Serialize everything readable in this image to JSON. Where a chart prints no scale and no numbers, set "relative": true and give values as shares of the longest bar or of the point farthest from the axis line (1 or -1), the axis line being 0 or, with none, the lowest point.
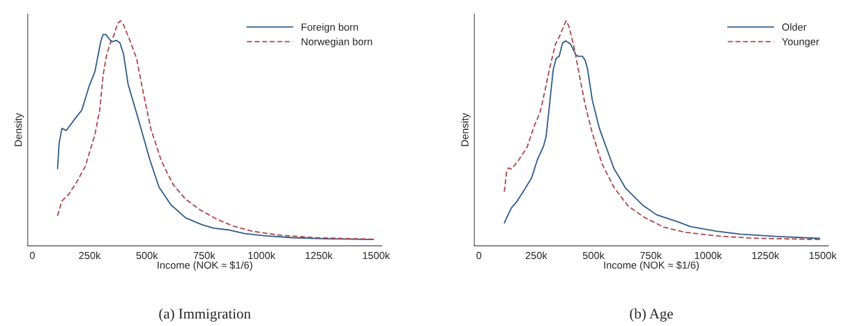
{
  "chart_data": [
    {
      "type": "line",
      "relative": true,
      "ylabel": "Density",
      "xlabel": "Income (NOK ≈ $1/6)",
      "xlim": [
        -20,
        1525
      ],
      "xticks": [
        0,
        {
          "value": 250,
          "label": "250k"
        },
        {
          "value": 500,
          "label": "500k"
        },
        {
          "value": 750,
          "label": "750k"
        },
        {
          "value": 1000,
          "label": "1000k"
        },
        {
          "value": 1250,
          "label": "1250k"
        },
        {
          "value": 1500,
          "label": "1500k"
        }
      ],
      "legend": "top right",
      "grid": false,
      "annotations": [
        "(a) Immigration"
      ],
      "series": [
        {
          "name": "Foreign born",
          "color": "#2f5b88",
          "line_style": "solid",
          "x": [
            110,
            117,
            129,
            148,
            190,
            216,
            247,
            273,
            299,
            309,
            320,
            346,
            366,
            382,
            398,
            418,
            460,
            512,
            553,
            605,
            668,
            740,
            792,
            854,
            927,
            1010,
            1135,
            1290,
            1488
          ],
          "values": [
            0.343,
            0.457,
            0.522,
            0.512,
            0.57,
            0.603,
            0.707,
            0.774,
            0.91,
            0.939,
            0.939,
            0.906,
            0.913,
            0.902,
            0.852,
            0.717,
            0.572,
            0.385,
            0.26,
            0.182,
            0.125,
            0.094,
            0.078,
            0.071,
            0.054,
            0.045,
            0.036,
            0.031,
            0.028
          ]
        },
        {
          "name": "Norwegian born",
          "color": "#b0434c",
          "line_style": "dashed",
          "x": [
            110,
            128,
            159,
            195,
            231,
            273,
            294,
            309,
            325,
            341,
            356,
            372,
            385,
            398,
            429,
            455,
            481,
            517,
            564,
            616,
            668,
            730,
            802,
            875,
            958,
            1083,
            1238,
            1488
          ],
          "values": [
            0.133,
            0.198,
            0.229,
            0.286,
            0.353,
            0.494,
            0.603,
            0.759,
            0.852,
            0.904,
            0.936,
            0.988,
            1.0,
            0.982,
            0.904,
            0.832,
            0.696,
            0.52,
            0.374,
            0.27,
            0.208,
            0.161,
            0.12,
            0.088,
            0.065,
            0.047,
            0.036,
            0.029
          ]
        }
      ]
    },
    {
      "type": "line",
      "relative": true,
      "ylabel": "Density",
      "xlabel": "Income (NOK ≈ $1/6)",
      "xlim": [
        -20,
        1525
      ],
      "xticks": [
        0,
        {
          "value": 250,
          "label": "250k"
        },
        {
          "value": 500,
          "label": "500k"
        },
        {
          "value": 750,
          "label": "750k"
        },
        {
          "value": 1000,
          "label": "1000k"
        },
        {
          "value": 1250,
          "label": "1250k"
        },
        {
          "value": 1500,
          "label": "1500k"
        }
      ],
      "legend": "top right",
      "grid": false,
      "annotations": [
        "(b) Age"
      ],
      "series": [
        {
          "name": "Older",
          "color": "#2f5b88",
          "line_style": "solid",
          "x": [
            111,
            142,
            163,
            199,
            230,
            256,
            282,
            293,
            308,
            324,
            337,
            350,
            365,
            379,
            400,
            423,
            433,
            452,
            464,
            474,
            495,
            526,
            589,
            641,
            713,
            775,
            869,
            921,
            1035,
            1139,
            1295,
            1487
          ],
          "values": [
            0.102,
            0.169,
            0.193,
            0.25,
            0.302,
            0.385,
            0.443,
            0.484,
            0.625,
            0.781,
            0.833,
            0.842,
            0.901,
            0.911,
            0.896,
            0.849,
            0.842,
            0.842,
            0.823,
            0.786,
            0.646,
            0.521,
            0.344,
            0.255,
            0.182,
            0.138,
            0.106,
            0.086,
            0.065,
            0.052,
            0.042,
            0.033
          ]
        },
        {
          "name": "Younger",
          "color": "#b0434c",
          "line_style": "dashed",
          "x": [
            111,
            121,
            130,
            142,
            173,
            210,
            241,
            267,
            288,
            308,
            334,
            355,
            371,
            381,
            393,
            417,
            438,
            464,
            495,
            537,
            589,
            651,
            724,
            807,
            900,
            1035,
            1191,
            1487
          ],
          "values": [
            0.24,
            0.333,
            0.346,
            0.341,
            0.38,
            0.438,
            0.531,
            0.594,
            0.688,
            0.786,
            0.896,
            0.938,
            0.979,
            1.0,
            0.974,
            0.875,
            0.76,
            0.625,
            0.5,
            0.365,
            0.26,
            0.177,
            0.125,
            0.083,
            0.06,
            0.044,
            0.034,
            0.028
          ]
        }
      ]
    }
  ]
}
